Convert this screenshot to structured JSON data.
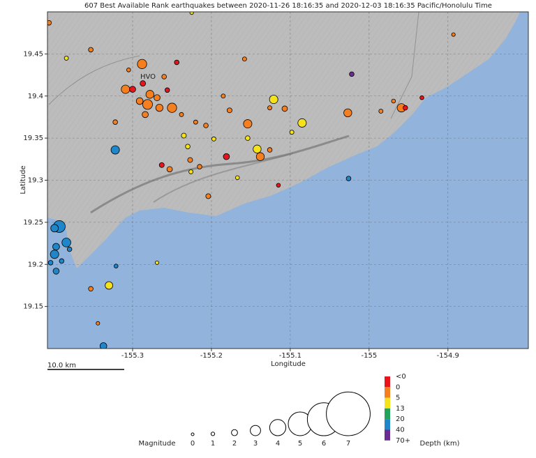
{
  "chart_data": {
    "type": "scatter",
    "title": "607 Best Available Rank earthquakes between 2020-11-26 18:16:35 and 2020-12-03 18:16:35 Pacific/Honolulu Time",
    "x_label": "Longitude",
    "y_label": "Latitude",
    "xlim": [
      -155.408,
      -154.798
    ],
    "ylim": [
      19.1,
      19.5
    ],
    "xticks": [
      -155.3,
      -155.2,
      -155.1,
      -155,
      -154.9
    ],
    "yticks": [
      19.15,
      19.2,
      19.25,
      19.3,
      19.35,
      19.4,
      19.45
    ],
    "grid": true,
    "place_label": "HVO",
    "scale_label": "10.0 km",
    "earthquakes": {
      "lon": [
        -155.406,
        -155.353,
        -155.384,
        -155.288,
        -155.022,
        -155.309,
        -155.3,
        -155.287,
        -155.278,
        -155.269,
        -155.281,
        -155.256,
        -155.291,
        -155.266,
        -155.25,
        -155.322,
        -155.238,
        -155.22,
        -155.207,
        -155.185,
        -155.154,
        -155.121,
        -155.107,
        -155.085,
        -155.027,
        -154.959,
        -154.954,
        -154.985,
        -154.969,
        -155.322,
        -155.235,
        -155.23,
        -155.197,
        -155.142,
        -155.138,
        -155.154,
        -155.126,
        -155.181,
        -155.227,
        -155.263,
        -155.253,
        -155.226,
        -155.215,
        -155.204,
        -155.026,
        -155.115,
        -155.393,
        -155.399,
        -155.384,
        -155.397,
        -155.399,
        -155.38,
        -155.404,
        -155.39,
        -155.397,
        -155.33,
        -155.353,
        -155.321,
        -155.337,
        -155.269,
        -155.344,
        -155.158,
        -155.225,
        -154.893,
        -154.933,
        -155.284,
        -155.26,
        -155.305,
        -155.244,
        -155.177,
        -155.126,
        -155.098,
        -155.167
      ],
      "lat": [
        19.487,
        19.455,
        19.445,
        19.438,
        19.426,
        19.408,
        19.408,
        19.415,
        19.402,
        19.398,
        19.39,
        19.407,
        19.394,
        19.386,
        19.386,
        19.369,
        19.378,
        19.369,
        19.365,
        19.4,
        19.367,
        19.396,
        19.385,
        19.368,
        19.38,
        19.386,
        19.386,
        19.382,
        19.394,
        19.336,
        19.353,
        19.34,
        19.349,
        19.337,
        19.328,
        19.35,
        19.336,
        19.328,
        19.324,
        19.318,
        19.313,
        19.31,
        19.316,
        19.281,
        19.302,
        19.294,
        19.245,
        19.243,
        19.226,
        19.221,
        19.212,
        19.218,
        19.202,
        19.204,
        19.192,
        19.175,
        19.171,
        19.198,
        19.103,
        19.202,
        19.13,
        19.444,
        19.499,
        19.473,
        19.398,
        19.378,
        19.423,
        19.431,
        19.44,
        19.383,
        19.386,
        19.357,
        19.303
      ],
      "magnitude": [
        1.5,
        1.5,
        1.3,
        2.8,
        1.5,
        2.6,
        2,
        1.8,
        2.5,
        2,
        2.9,
        1.5,
        2.2,
        2.3,
        2.8,
        1.5,
        1.3,
        1.3,
        1.5,
        1.3,
        2.6,
        2.6,
        1.8,
        2.6,
        2.5,
        2.6,
        1.5,
        1.3,
        1.2,
        2.6,
        1.6,
        1.5,
        1.3,
        2.5,
        2.5,
        1.5,
        1.5,
        2,
        1.6,
        1.6,
        1.8,
        1.3,
        1.5,
        1.6,
        1.5,
        1.2,
        3.3,
        2.4,
        2.7,
        2.2,
        2.6,
        1.5,
        1.5,
        1.5,
        2,
        2.4,
        1.5,
        1.2,
        2.2,
        1,
        1,
        1.3,
        1,
        1,
        1.2,
        2,
        1.5,
        1.2,
        1.5,
        1.6,
        1.3,
        1.3,
        1.2
      ],
      "depth_class": [
        1,
        1,
        2,
        1,
        5,
        1,
        0,
        0,
        1,
        1,
        1,
        0,
        1,
        1,
        1,
        1,
        1,
        1,
        1,
        1,
        1,
        2,
        1,
        2,
        1,
        1,
        0,
        1,
        1,
        4,
        2,
        2,
        2,
        2,
        1,
        2,
        1,
        0,
        1,
        0,
        1,
        2,
        1,
        1,
        4,
        0,
        4,
        4,
        4,
        4,
        4,
        4,
        4,
        4,
        4,
        2,
        1,
        4,
        4,
        2,
        1,
        1,
        2,
        1,
        0,
        1,
        1,
        1,
        0,
        1,
        1,
        2,
        2
      ]
    },
    "magnitude_legend": {
      "title": "Magnitude",
      "values": [
        0,
        1,
        2,
        3,
        4,
        5,
        6,
        7
      ]
    },
    "depth_legend": {
      "title": "Depth (km)",
      "labels": [
        "<0",
        "0",
        "5",
        "13",
        "20",
        "40",
        "70+"
      ],
      "colors": [
        "#e8131b",
        "#f57f1e",
        "#f5e21a",
        "#23a35a",
        "#1f86c9",
        "#6a2c91"
      ]
    }
  }
}
